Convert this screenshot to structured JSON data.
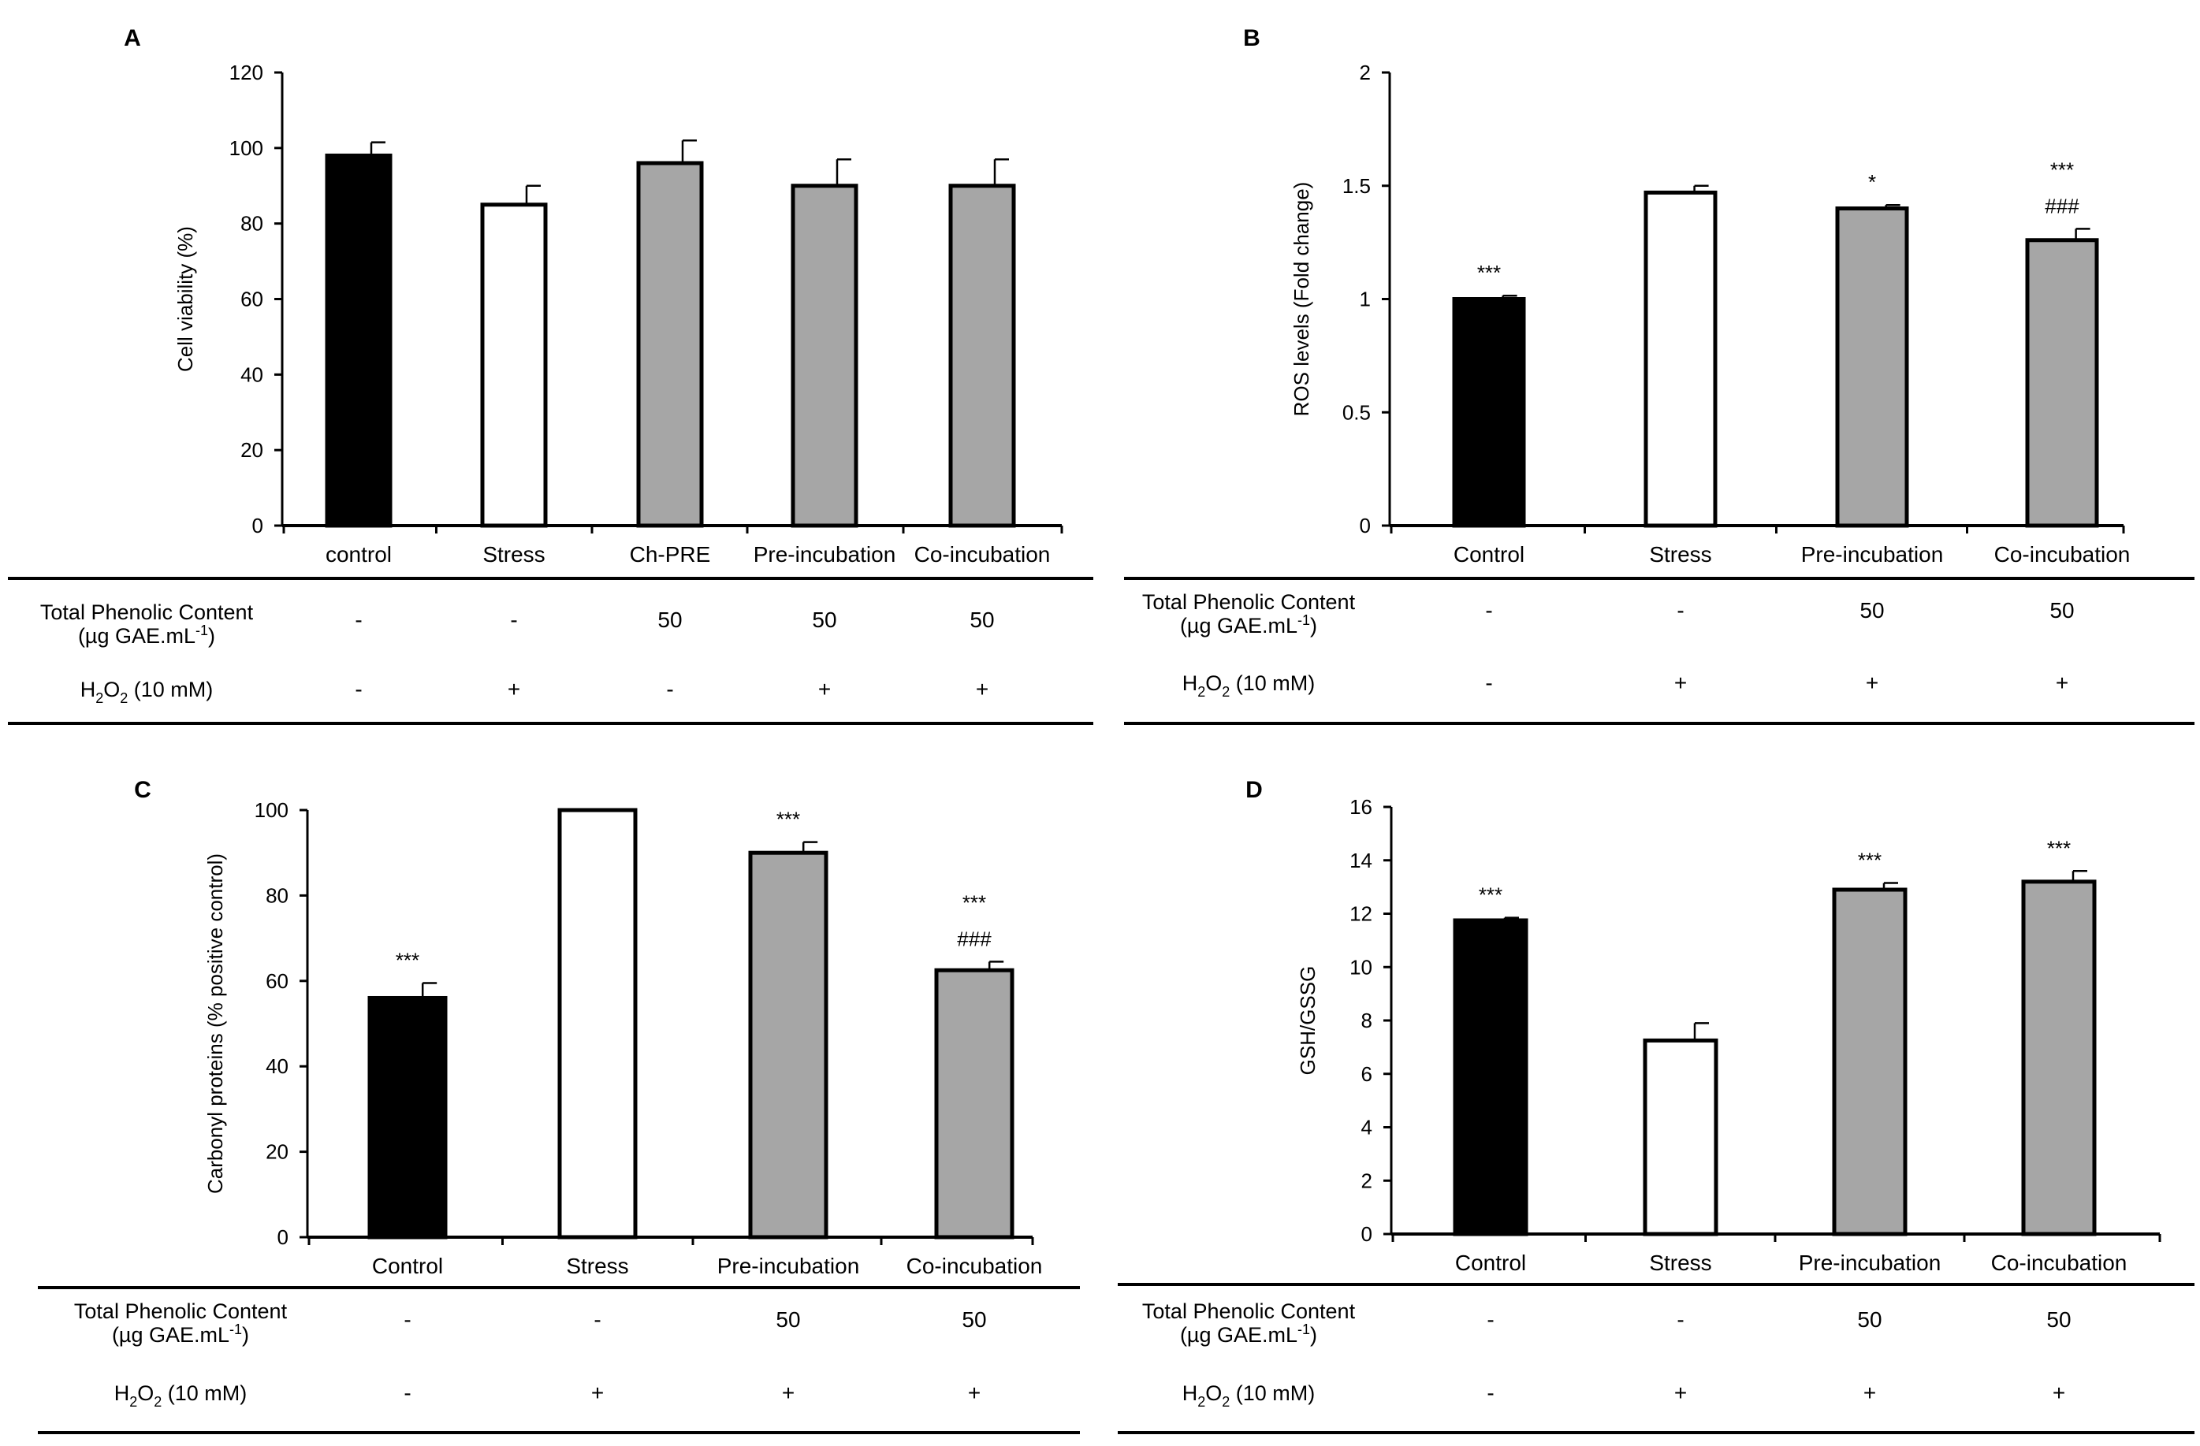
{
  "figure": {
    "colors": {
      "black": "#000000",
      "white": "#ffffff",
      "gray": "#a6a6a6"
    },
    "table_labels": {
      "tpc_line1": "Total Phenolic Content",
      "tpc_line2_prefix": "(µg GAE.mL",
      "tpc_line2_sup": "-1",
      "tpc_line2_suffix": ")",
      "h2o2_h": "H",
      "h2o2_sub1": "2",
      "h2o2_o": "O",
      "h2o2_sub2": "2",
      "h2o2_rest": " (10 mM)"
    }
  },
  "chart_data": [
    {
      "panel": "A",
      "type": "bar",
      "ylabel": "Cell viability (%)",
      "ylim": [
        0,
        120
      ],
      "yticks": [
        0,
        20,
        40,
        60,
        80,
        100,
        120
      ],
      "categories": [
        "control",
        "Stress",
        "Ch-PRE",
        "Pre-incubation",
        "Co-incubation"
      ],
      "values": [
        98,
        85,
        96,
        90,
        90
      ],
      "errors": [
        3.5,
        5,
        6,
        7,
        7
      ],
      "fills": [
        "black",
        "white",
        "gray",
        "gray",
        "gray"
      ],
      "annotations": [
        [],
        [],
        [],
        [],
        []
      ],
      "tpc": [
        "-",
        "-",
        "50",
        "50",
        "50"
      ],
      "h2o2": [
        "-",
        "+",
        "-",
        "+",
        "+"
      ]
    },
    {
      "panel": "B",
      "type": "bar",
      "ylabel": "ROS levels (Fold change)",
      "ylim": [
        0,
        2
      ],
      "yticks": [
        "0",
        "0.5",
        "1",
        "1.5",
        "2"
      ],
      "categories": [
        "Control",
        "Stress",
        "Pre-incubation",
        "Co-incubation"
      ],
      "values": [
        1.0,
        1.47,
        1.4,
        1.26
      ],
      "errors": [
        0.015,
        0.03,
        0.015,
        0.05
      ],
      "fills": [
        "black",
        "white",
        "gray",
        "gray"
      ],
      "annotations": [
        [
          "***"
        ],
        [],
        [
          "*"
        ],
        [
          "***",
          "###"
        ]
      ],
      "tpc": [
        "-",
        "-",
        "50",
        "50"
      ],
      "h2o2": [
        "-",
        "+",
        "+",
        "+"
      ]
    },
    {
      "panel": "C",
      "type": "bar",
      "ylabel": "Carbonyl proteins (% positive control)",
      "ylim": [
        0,
        100
      ],
      "yticks": [
        0,
        20,
        40,
        60,
        80,
        100
      ],
      "categories": [
        "Control",
        "Stress",
        "Pre-incubation",
        "Co-incubation"
      ],
      "values": [
        56,
        100,
        90,
        62.5
      ],
      "errors": [
        3.5,
        0,
        2.5,
        2
      ],
      "fills": [
        "black",
        "white",
        "gray",
        "gray"
      ],
      "annotations": [
        [
          "***"
        ],
        [],
        [
          "***"
        ],
        [
          "***",
          "###"
        ]
      ],
      "tpc": [
        "-",
        "-",
        "50",
        "50"
      ],
      "h2o2": [
        "-",
        "+",
        "+",
        "+"
      ]
    },
    {
      "panel": "D",
      "type": "bar",
      "ylabel": "GSH/GSSG",
      "ylim": [
        0,
        16
      ],
      "yticks": [
        0,
        2,
        4,
        6,
        8,
        10,
        12,
        14,
        16
      ],
      "categories": [
        "Control",
        "Stress",
        "Pre-incubation",
        "Co-incubation"
      ],
      "values": [
        11.75,
        7.25,
        12.9,
        13.2
      ],
      "errors": [
        0.1,
        0.65,
        0.25,
        0.4
      ],
      "fills": [
        "black",
        "white",
        "gray",
        "gray"
      ],
      "annotations": [
        [
          "***"
        ],
        [],
        [
          "***"
        ],
        [
          "***"
        ]
      ],
      "tpc": [
        "-",
        "-",
        "50",
        "50"
      ],
      "h2o2": [
        "-",
        "+",
        "+",
        "+"
      ]
    }
  ]
}
